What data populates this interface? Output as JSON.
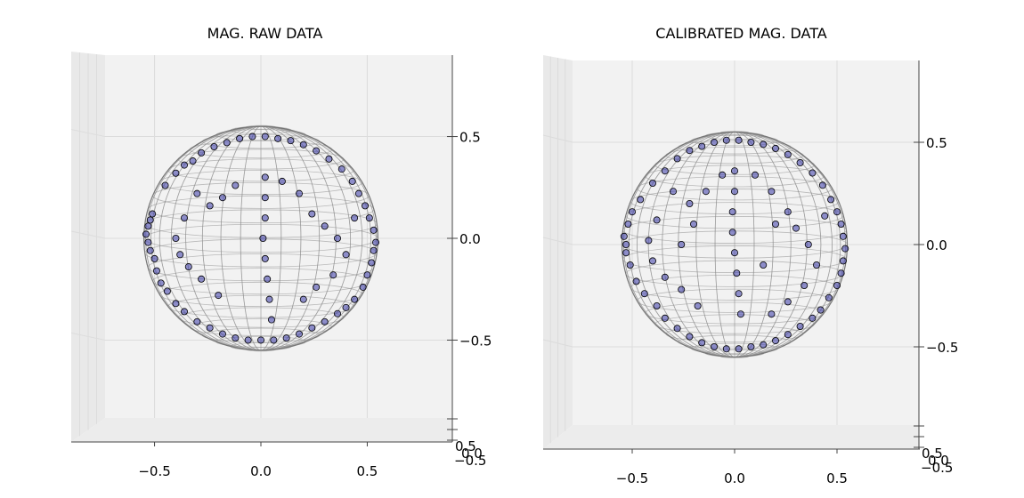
{
  "chart_data": [
    {
      "type": "scatter",
      "title": "MAG. RAW DATA",
      "xlabel": "",
      "ylabel": "",
      "zlabel": "",
      "x_ticks": [
        "−0.5",
        "0.0",
        "0.5"
      ],
      "z_ticks": [
        "0.5",
        "0.0",
        "−0.5"
      ],
      "y_ticks": [
        "0.5",
        "0.0",
        "−0.5"
      ],
      "xlim": [
        -0.9,
        0.9
      ],
      "zlim": [
        -0.9,
        0.9
      ],
      "grid": true,
      "sphere_wireframe": true,
      "sphere_radius": 0.55,
      "marker_color": "#3a3aa8",
      "marker_edge": "#000000",
      "sphere_color": "#8a8a8a",
      "points": [
        [
          -0.54,
          0.02
        ],
        [
          -0.53,
          -0.02
        ],
        [
          -0.53,
          0.06
        ],
        [
          -0.52,
          0.09
        ],
        [
          -0.52,
          -0.06
        ],
        [
          -0.51,
          0.12
        ],
        [
          -0.5,
          -0.1
        ],
        [
          -0.49,
          -0.16
        ],
        [
          -0.47,
          -0.22
        ],
        [
          -0.45,
          0.26
        ],
        [
          -0.44,
          -0.26
        ],
        [
          -0.4,
          0.32
        ],
        [
          -0.36,
          0.36
        ],
        [
          -0.32,
          0.38
        ],
        [
          -0.28,
          0.42
        ],
        [
          -0.22,
          0.45
        ],
        [
          -0.16,
          0.47
        ],
        [
          -0.1,
          0.49
        ],
        [
          -0.04,
          0.5
        ],
        [
          0.02,
          0.5
        ],
        [
          0.08,
          0.49
        ],
        [
          0.14,
          0.48
        ],
        [
          0.2,
          0.46
        ],
        [
          0.26,
          0.43
        ],
        [
          0.32,
          0.39
        ],
        [
          0.38,
          0.34
        ],
        [
          0.43,
          0.28
        ],
        [
          0.46,
          0.22
        ],
        [
          0.49,
          0.16
        ],
        [
          0.51,
          0.1
        ],
        [
          0.53,
          0.04
        ],
        [
          0.54,
          -0.02
        ],
        [
          0.53,
          -0.06
        ],
        [
          0.52,
          -0.12
        ],
        [
          0.5,
          -0.18
        ],
        [
          0.48,
          -0.24
        ],
        [
          0.44,
          -0.3
        ],
        [
          0.4,
          -0.34
        ],
        [
          0.36,
          -0.37
        ],
        [
          0.3,
          -0.41
        ],
        [
          0.24,
          -0.44
        ],
        [
          0.18,
          -0.47
        ],
        [
          0.12,
          -0.49
        ],
        [
          0.06,
          -0.5
        ],
        [
          0.0,
          -0.5
        ],
        [
          -0.06,
          -0.5
        ],
        [
          -0.12,
          -0.49
        ],
        [
          -0.18,
          -0.47
        ],
        [
          -0.24,
          -0.44
        ],
        [
          -0.3,
          -0.41
        ],
        [
          -0.36,
          -0.36
        ],
        [
          -0.4,
          -0.32
        ],
        [
          0.02,
          0.3
        ],
        [
          0.02,
          0.2
        ],
        [
          0.02,
          0.1
        ],
        [
          0.01,
          0.0
        ],
        [
          0.02,
          -0.1
        ],
        [
          0.03,
          -0.2
        ],
        [
          0.04,
          -0.3
        ],
        [
          0.05,
          -0.4
        ],
        [
          -0.3,
          0.22
        ],
        [
          -0.24,
          0.16
        ],
        [
          -0.18,
          0.2
        ],
        [
          -0.12,
          0.26
        ],
        [
          0.1,
          0.28
        ],
        [
          0.18,
          0.22
        ],
        [
          0.24,
          0.12
        ],
        [
          0.3,
          0.06
        ],
        [
          0.36,
          0.0
        ],
        [
          0.4,
          -0.08
        ],
        [
          -0.36,
          0.1
        ],
        [
          -0.4,
          0.0
        ],
        [
          -0.38,
          -0.08
        ],
        [
          -0.34,
          -0.14
        ],
        [
          -0.28,
          -0.2
        ],
        [
          -0.2,
          -0.28
        ],
        [
          0.2,
          -0.3
        ],
        [
          0.26,
          -0.24
        ],
        [
          0.34,
          -0.18
        ],
        [
          0.44,
          0.1
        ]
      ]
    },
    {
      "type": "scatter",
      "title": "CALIBRATED MAG. DATA",
      "xlabel": "",
      "ylabel": "",
      "zlabel": "",
      "x_ticks": [
        "−0.5",
        "0.0",
        "0.5"
      ],
      "z_ticks": [
        "0.5",
        "0.0",
        "−0.5"
      ],
      "y_ticks": [
        "0.5",
        "0.0",
        "−0.5"
      ],
      "xlim": [
        -0.9,
        0.9
      ],
      "zlim": [
        -0.9,
        0.9
      ],
      "grid": true,
      "sphere_wireframe": true,
      "sphere_radius": 0.55,
      "marker_color": "#3a3aa8",
      "marker_edge": "#000000",
      "sphere_color": "#8a8a8a",
      "points": [
        [
          -0.54,
          0.04
        ],
        [
          -0.53,
          0.0
        ],
        [
          -0.53,
          -0.04
        ],
        [
          -0.52,
          0.1
        ],
        [
          -0.51,
          -0.1
        ],
        [
          -0.5,
          0.16
        ],
        [
          -0.48,
          -0.18
        ],
        [
          -0.46,
          0.22
        ],
        [
          -0.44,
          -0.24
        ],
        [
          -0.4,
          0.3
        ],
        [
          -0.38,
          -0.3
        ],
        [
          -0.34,
          0.36
        ],
        [
          -0.28,
          0.42
        ],
        [
          -0.22,
          0.46
        ],
        [
          -0.16,
          0.48
        ],
        [
          -0.1,
          0.5
        ],
        [
          -0.04,
          0.51
        ],
        [
          0.02,
          0.51
        ],
        [
          0.08,
          0.5
        ],
        [
          0.14,
          0.49
        ],
        [
          0.2,
          0.47
        ],
        [
          0.26,
          0.44
        ],
        [
          0.32,
          0.4
        ],
        [
          0.38,
          0.35
        ],
        [
          0.43,
          0.29
        ],
        [
          0.47,
          0.22
        ],
        [
          0.5,
          0.16
        ],
        [
          0.52,
          0.1
        ],
        [
          0.53,
          0.04
        ],
        [
          0.54,
          -0.02
        ],
        [
          0.53,
          -0.08
        ],
        [
          0.52,
          -0.14
        ],
        [
          0.5,
          -0.2
        ],
        [
          0.46,
          -0.26
        ],
        [
          0.42,
          -0.32
        ],
        [
          0.38,
          -0.36
        ],
        [
          0.32,
          -0.4
        ],
        [
          0.26,
          -0.44
        ],
        [
          0.2,
          -0.47
        ],
        [
          0.14,
          -0.49
        ],
        [
          0.08,
          -0.5
        ],
        [
          0.02,
          -0.51
        ],
        [
          -0.04,
          -0.51
        ],
        [
          -0.1,
          -0.5
        ],
        [
          -0.16,
          -0.48
        ],
        [
          -0.22,
          -0.45
        ],
        [
          -0.28,
          -0.41
        ],
        [
          -0.34,
          -0.36
        ],
        [
          0.0,
          0.36
        ],
        [
          0.0,
          0.26
        ],
        [
          -0.01,
          0.16
        ],
        [
          -0.01,
          0.06
        ],
        [
          0.0,
          -0.04
        ],
        [
          0.01,
          -0.14
        ],
        [
          0.02,
          -0.24
        ],
        [
          0.03,
          -0.34
        ],
        [
          -0.3,
          0.26
        ],
        [
          -0.22,
          0.2
        ],
        [
          -0.14,
          0.26
        ],
        [
          -0.06,
          0.34
        ],
        [
          0.1,
          0.34
        ],
        [
          0.18,
          0.26
        ],
        [
          0.26,
          0.16
        ],
        [
          0.3,
          0.08
        ],
        [
          0.36,
          0.0
        ],
        [
          -0.38,
          0.12
        ],
        [
          -0.42,
          0.02
        ],
        [
          -0.4,
          -0.08
        ],
        [
          -0.34,
          -0.16
        ],
        [
          -0.26,
          -0.22
        ],
        [
          -0.18,
          -0.3
        ],
        [
          0.18,
          -0.34
        ],
        [
          0.26,
          -0.28
        ],
        [
          0.34,
          -0.2
        ],
        [
          0.44,
          0.14
        ],
        [
          0.4,
          -0.1
        ],
        [
          -0.2,
          0.1
        ],
        [
          -0.26,
          0.0
        ],
        [
          0.2,
          0.1
        ],
        [
          0.14,
          -0.1
        ]
      ]
    }
  ]
}
